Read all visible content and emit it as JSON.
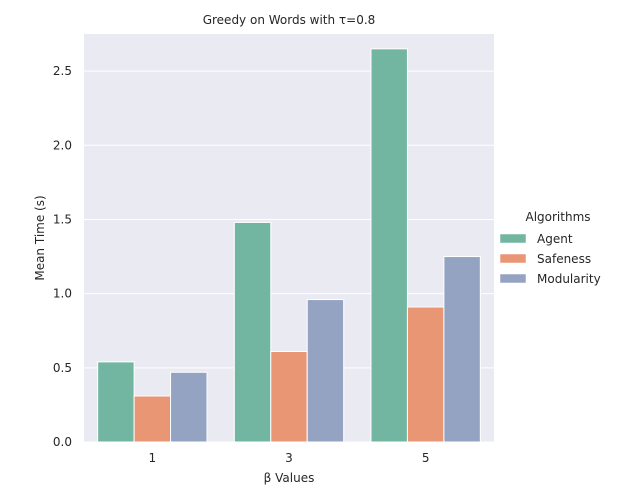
{
  "chart_data": {
    "type": "bar",
    "title": "Greedy on Words with τ=0.8",
    "xlabel": "β Values",
    "ylabel": "Mean Time (s)",
    "categories": [
      "1",
      "3",
      "5"
    ],
    "series": [
      {
        "name": "Agent",
        "color": "#72b6a1",
        "values": [
          0.54,
          1.48,
          2.65
        ]
      },
      {
        "name": "Safeness",
        "color": "#e99675",
        "values": [
          0.31,
          0.61,
          0.91
        ]
      },
      {
        "name": "Modularity",
        "color": "#95a3c3",
        "values": [
          0.47,
          0.96,
          1.25
        ]
      }
    ],
    "ylim": [
      0,
      2.75
    ],
    "yticks": [
      "0.0",
      "0.5",
      "1.0",
      "1.5",
      "2.0",
      "2.5"
    ],
    "legend": {
      "title": "Algorithms",
      "placement": "right"
    },
    "grid": true,
    "background_color": "#eaeaf2"
  }
}
